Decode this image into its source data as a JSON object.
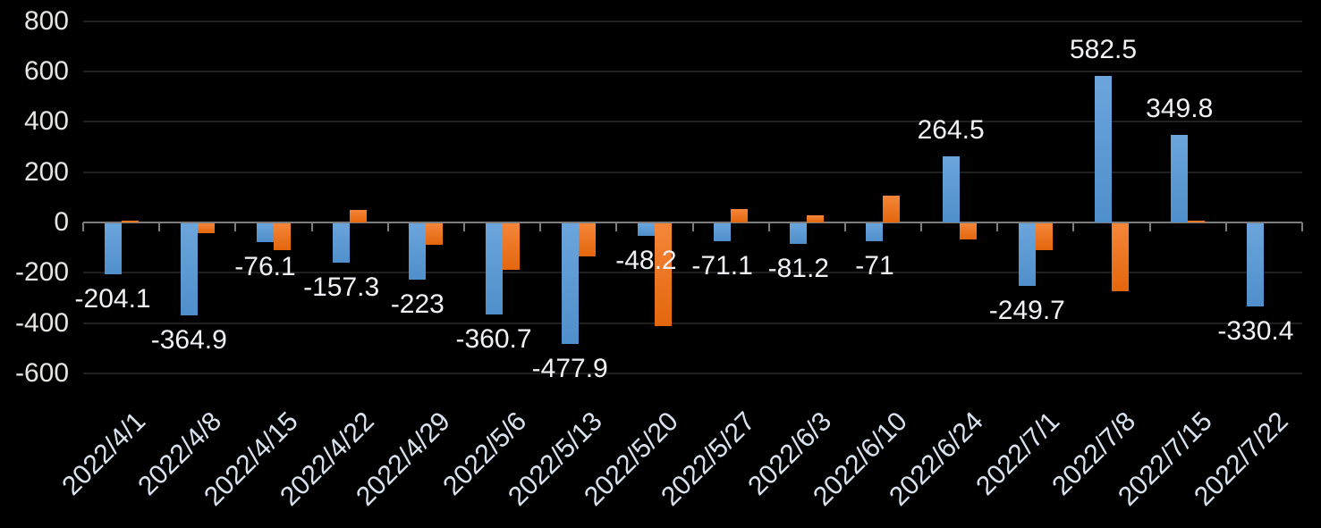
{
  "chart_data": {
    "type": "bar",
    "title": "",
    "legend": "none",
    "grid": true,
    "background": "#000000",
    "categories": [
      "2022/4/1",
      "2022/4/8",
      "2022/4/15",
      "2022/4/22",
      "2022/4/29",
      "2022/5/6",
      "2022/5/13",
      "2022/5/20",
      "2022/5/27",
      "2022/6/3",
      "2022/6/10",
      "2022/6/24",
      "2022/7/1",
      "2022/7/8",
      "2022/7/15",
      "2022/7/22"
    ],
    "series": [
      {
        "name": "blue-series",
        "color": "#5b9bd5",
        "values": [
          -204.1,
          -364.9,
          -76.1,
          -157.3,
          -223,
          -360.7,
          -477.9,
          -48.2,
          -71.1,
          -81.2,
          -71,
          264.5,
          -249.7,
          582.5,
          349.8,
          -330.4
        ],
        "data_labels": [
          "-204.1",
          "-364.9",
          "-76.1",
          "-157.3",
          "-223",
          "-360.7",
          "-477.9",
          "-48.2",
          "-71.1",
          "-81.2",
          "-71",
          "264.5",
          "-249.7",
          "582.5",
          "349.8",
          "-330.4"
        ]
      },
      {
        "name": "orange-series",
        "color": "#ed7d31",
        "values": [
          8,
          -38,
          -105,
          48,
          -85,
          -185,
          -130,
          -410,
          52,
          29,
          105,
          -65,
          -105,
          -270,
          8,
          0
        ],
        "data_labels": []
      }
    ],
    "y_axis": {
      "min": -600,
      "max": 800,
      "tick_step": 200,
      "ticks": [
        800,
        600,
        400,
        200,
        0,
        -200,
        -400,
        -600
      ]
    },
    "colors": {
      "background": "#000000",
      "gridline": "#202020",
      "axis_line": "#7d7d7d",
      "y_tick_label": "#e7e5e1",
      "x_tick_label": "#d9e3ef",
      "data_label": "#f0f2f5"
    }
  }
}
